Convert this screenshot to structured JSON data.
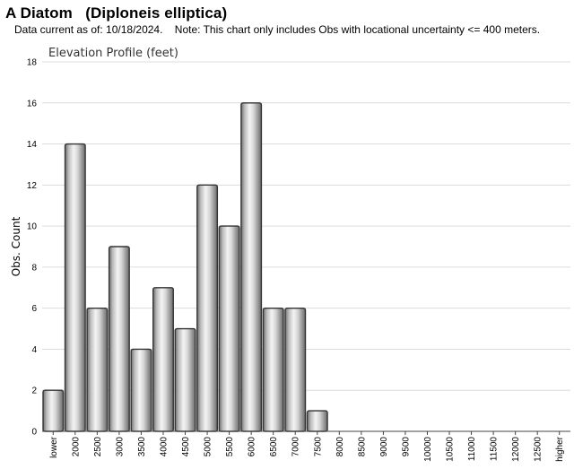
{
  "header": {
    "title": "A Diatom   (Diploneis elliptica)",
    "subtitle": "Data current as of: 10/18/2024.    Note: This chart only includes Obs with locational uncertainty <= 400 meters."
  },
  "chart_data": {
    "type": "bar",
    "title": "Elevation Profile (feet)",
    "xlabel": "",
    "ylabel": "Obs. Count",
    "categories": [
      "lower",
      "2000",
      "2500",
      "3000",
      "3500",
      "4000",
      "4500",
      "5000",
      "5500",
      "6000",
      "6500",
      "7000",
      "7500",
      "8000",
      "8500",
      "9000",
      "9500",
      "10000",
      "10500",
      "11000",
      "11500",
      "12000",
      "12500",
      "higher"
    ],
    "values": [
      2,
      14,
      6,
      9,
      4,
      7,
      5,
      12,
      10,
      16,
      6,
      6,
      1,
      0,
      0,
      0,
      0,
      0,
      0,
      0,
      0,
      0,
      0,
      0
    ],
    "ylim": [
      0,
      18
    ],
    "yticks": [
      0,
      2,
      4,
      6,
      8,
      10,
      12,
      14,
      16,
      18
    ],
    "grid": true,
    "legend": "none",
    "bar_color": "#c8c8c8",
    "bar_edge_color": "#333333"
  }
}
